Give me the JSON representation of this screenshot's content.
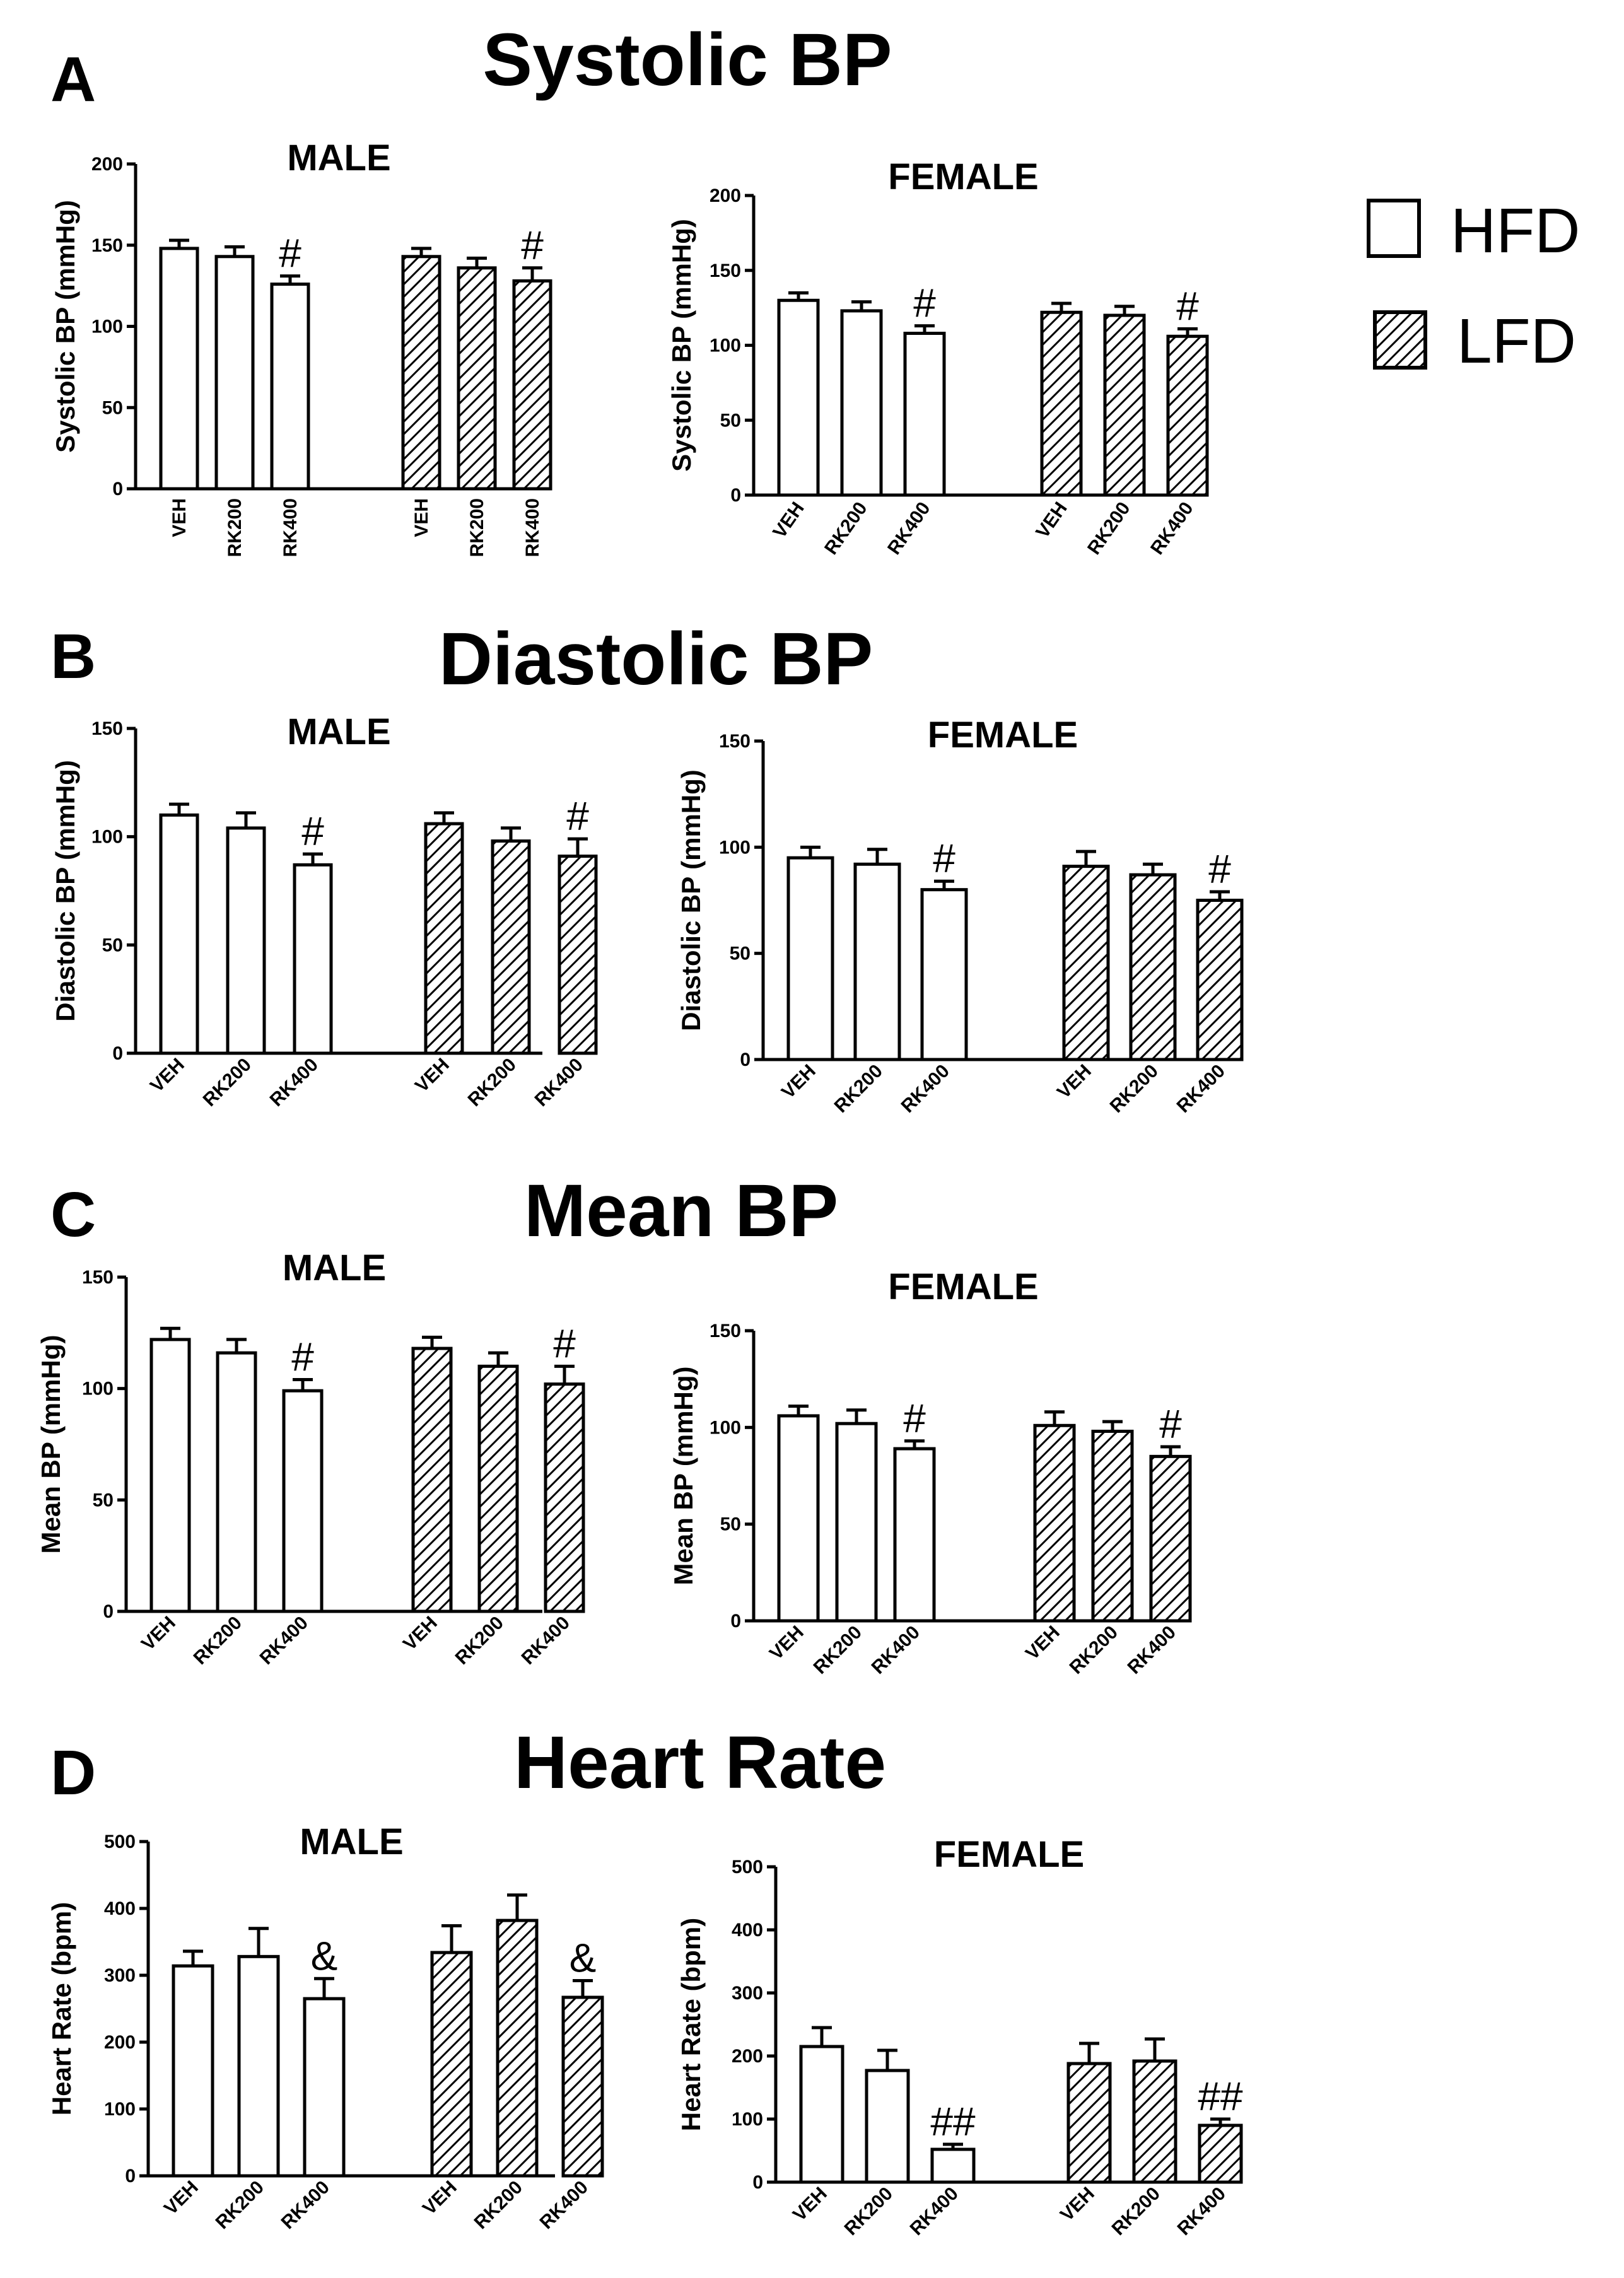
{
  "figure": {
    "legend": [
      {
        "label": "HFD",
        "pattern": "solid"
      },
      {
        "label": "LFD",
        "pattern": "hatch"
      }
    ],
    "sections": [
      {
        "letter": "A",
        "title": "Systolic BP"
      },
      {
        "letter": "B",
        "title": "Diastolic BP"
      },
      {
        "letter": "C",
        "title": "Mean BP"
      },
      {
        "letter": "D",
        "title": "Heart Rate"
      }
    ]
  },
  "colors": {
    "bar_fill": "#ffffff",
    "stroke": "#000000",
    "hatch": "#000000"
  },
  "chart_data": [
    {
      "type": "bar",
      "section": "A",
      "title": "MALE",
      "ylabel": "Systolic BP (mmHg)",
      "ylim": [
        0,
        200
      ],
      "yticks": [
        0,
        50,
        100,
        150,
        200
      ],
      "categories": [
        "VEH",
        "RK200",
        "RK400",
        "VEH",
        "RK200",
        "RK400"
      ],
      "values": [
        148,
        143,
        126,
        143,
        136,
        128
      ],
      "errors": [
        5,
        6,
        5,
        5,
        6,
        8
      ],
      "groups": [
        "HFD",
        "HFD",
        "HFD",
        "LFD",
        "LFD",
        "LFD"
      ],
      "annotations": [
        "",
        "",
        "#",
        "",
        "",
        "#"
      ]
    },
    {
      "type": "bar",
      "section": "A",
      "title": "FEMALE",
      "ylabel": "Systolic BP (mmHg)",
      "ylim": [
        0,
        200
      ],
      "yticks": [
        0,
        50,
        100,
        150,
        200
      ],
      "categories": [
        "VEH",
        "RK200",
        "RK400",
        "VEH",
        "RK200",
        "RK400"
      ],
      "values": [
        130,
        123,
        108,
        122,
        120,
        106
      ],
      "errors": [
        5,
        6,
        5,
        6,
        6,
        5
      ],
      "groups": [
        "HFD",
        "HFD",
        "HFD",
        "LFD",
        "LFD",
        "LFD"
      ],
      "annotations": [
        "",
        "",
        "#",
        "",
        "",
        "#"
      ]
    },
    {
      "type": "bar",
      "section": "B",
      "title": "MALE",
      "ylabel": "Diastolic BP (mmHg)",
      "ylim": [
        0,
        150
      ],
      "yticks": [
        0,
        50,
        100,
        150
      ],
      "categories": [
        "VEH",
        "RK200",
        "RK400",
        "VEH",
        "RK200",
        "RK400"
      ],
      "values": [
        110,
        104,
        87,
        106,
        98,
        91
      ],
      "errors": [
        5,
        7,
        5,
        5,
        6,
        8
      ],
      "groups": [
        "HFD",
        "HFD",
        "HFD",
        "LFD",
        "LFD",
        "LFD"
      ],
      "annotations": [
        "",
        "",
        "#",
        "",
        "",
        "#"
      ]
    },
    {
      "type": "bar",
      "section": "B",
      "title": "FEMALE",
      "ylabel": "Diastolic BP (mmHg)",
      "ylim": [
        0,
        150
      ],
      "yticks": [
        0,
        50,
        100,
        150
      ],
      "categories": [
        "VEH",
        "RK200",
        "RK400",
        "VEH",
        "RK200",
        "RK400"
      ],
      "values": [
        95,
        92,
        80,
        91,
        87,
        75
      ],
      "errors": [
        5,
        7,
        4,
        7,
        5,
        4
      ],
      "groups": [
        "HFD",
        "HFD",
        "HFD",
        "LFD",
        "LFD",
        "LFD"
      ],
      "annotations": [
        "",
        "",
        "#",
        "",
        "",
        "#"
      ]
    },
    {
      "type": "bar",
      "section": "C",
      "title": "MALE",
      "ylabel": "Mean BP (mmHg)",
      "ylim": [
        0,
        150
      ],
      "yticks": [
        0,
        50,
        100,
        150
      ],
      "categories": [
        "VEH",
        "RK200",
        "RK400",
        "VEH",
        "RK200",
        "RK400"
      ],
      "values": [
        122,
        116,
        99,
        118,
        110,
        102
      ],
      "errors": [
        5,
        6,
        5,
        5,
        6,
        8
      ],
      "groups": [
        "HFD",
        "HFD",
        "HFD",
        "LFD",
        "LFD",
        "LFD"
      ],
      "annotations": [
        "",
        "",
        "#",
        "",
        "",
        "#"
      ]
    },
    {
      "type": "bar",
      "section": "C",
      "title": "FEMALE",
      "ylabel": "Mean BP (mmHg)",
      "ylim": [
        0,
        150
      ],
      "yticks": [
        0,
        50,
        100,
        150
      ],
      "categories": [
        "VEH",
        "RK200",
        "RK400",
        "VEH",
        "RK200",
        "RK400"
      ],
      "values": [
        106,
        102,
        89,
        101,
        98,
        85
      ],
      "errors": [
        5,
        7,
        4,
        7,
        5,
        5
      ],
      "groups": [
        "HFD",
        "HFD",
        "HFD",
        "LFD",
        "LFD",
        "LFD"
      ],
      "annotations": [
        "",
        "",
        "#",
        "",
        "",
        "#"
      ]
    },
    {
      "type": "bar",
      "section": "D",
      "title": "MALE",
      "ylabel": "Heart Rate (bpm)",
      "ylim": [
        0,
        500
      ],
      "yticks": [
        0,
        100,
        200,
        300,
        400,
        500
      ],
      "categories": [
        "VEH",
        "RK200",
        "RK400",
        "VEH",
        "RK200",
        "RK400"
      ],
      "values": [
        314,
        328,
        265,
        334,
        382,
        267
      ],
      "errors": [
        22,
        42,
        30,
        40,
        38,
        25
      ],
      "groups": [
        "HFD",
        "HFD",
        "HFD",
        "LFD",
        "LFD",
        "LFD"
      ],
      "annotations": [
        "",
        "",
        "&",
        "",
        "",
        "&"
      ]
    },
    {
      "type": "bar",
      "section": "D",
      "title": "FEMALE",
      "ylabel": "Heart Rate (bpm)",
      "ylim": [
        0,
        500
      ],
      "yticks": [
        0,
        100,
        200,
        300,
        400,
        500
      ],
      "categories": [
        "VEH",
        "RK200",
        "RK400",
        "VEH",
        "RK200",
        "RK400"
      ],
      "values": [
        215,
        177,
        52,
        188,
        192,
        90
      ],
      "errors": [
        30,
        32,
        8,
        32,
        35,
        10
      ],
      "groups": [
        "HFD",
        "HFD",
        "HFD",
        "LFD",
        "LFD",
        "LFD"
      ],
      "annotations": [
        "",
        "",
        "##",
        "",
        "",
        "##"
      ]
    }
  ]
}
